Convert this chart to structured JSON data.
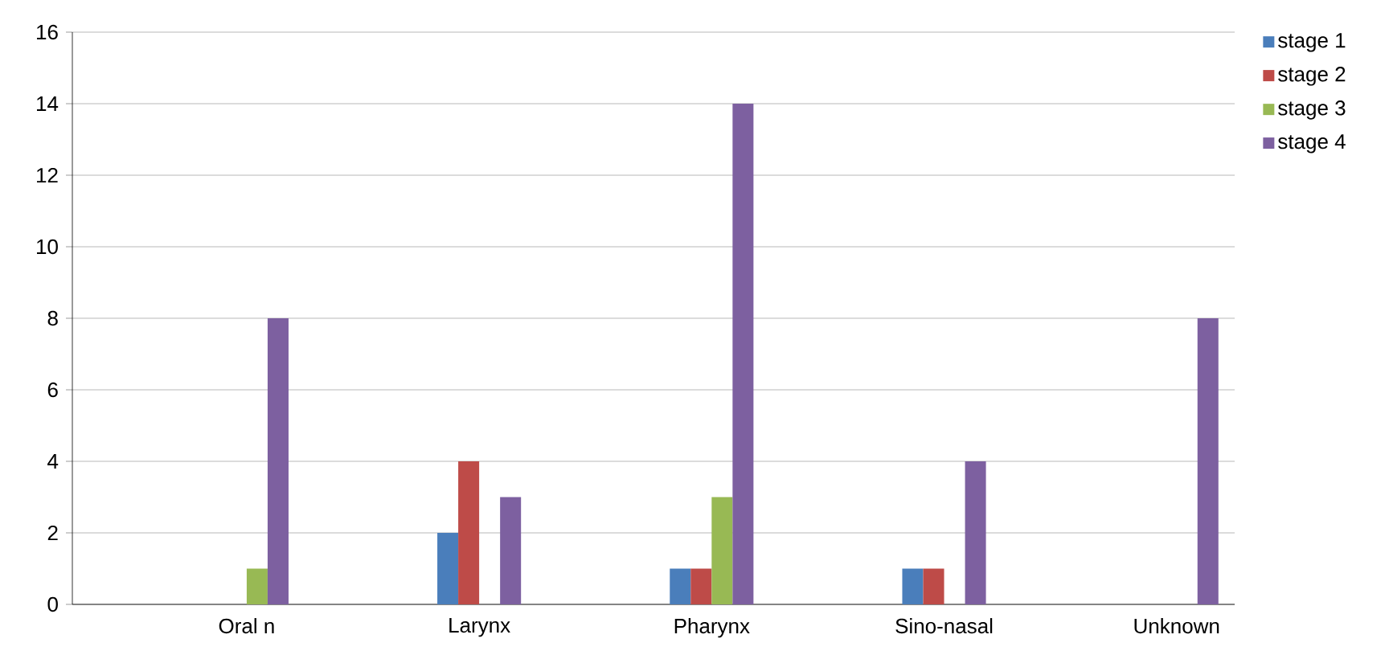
{
  "chart_data": {
    "type": "bar",
    "categories": [
      null,
      "Oral n",
      null,
      "Larynx",
      null,
      "Pharynx",
      null,
      "Sino-nasal",
      null,
      "Unknown"
    ],
    "series": [
      {
        "name": "stage 1",
        "color": "#4a7ebb",
        "values": [
          null,
          null,
          null,
          2,
          null,
          1,
          null,
          1,
          null,
          null
        ]
      },
      {
        "name": "stage 2",
        "color": "#be4b48",
        "values": [
          null,
          null,
          null,
          4,
          null,
          1,
          null,
          1,
          null,
          null
        ]
      },
      {
        "name": "stage 3",
        "color": "#98b954",
        "values": [
          null,
          1,
          null,
          null,
          null,
          3,
          null,
          null,
          null,
          null
        ]
      },
      {
        "name": "stage 4",
        "color": "#7d60a0",
        "values": [
          null,
          8,
          null,
          3,
          null,
          14,
          null,
          4,
          null,
          8
        ]
      }
    ],
    "ylim": [
      0,
      16
    ],
    "yticks": [
      0,
      2,
      4,
      6,
      8,
      10,
      12,
      14,
      16
    ],
    "grid": "y",
    "legend": "top right"
  }
}
